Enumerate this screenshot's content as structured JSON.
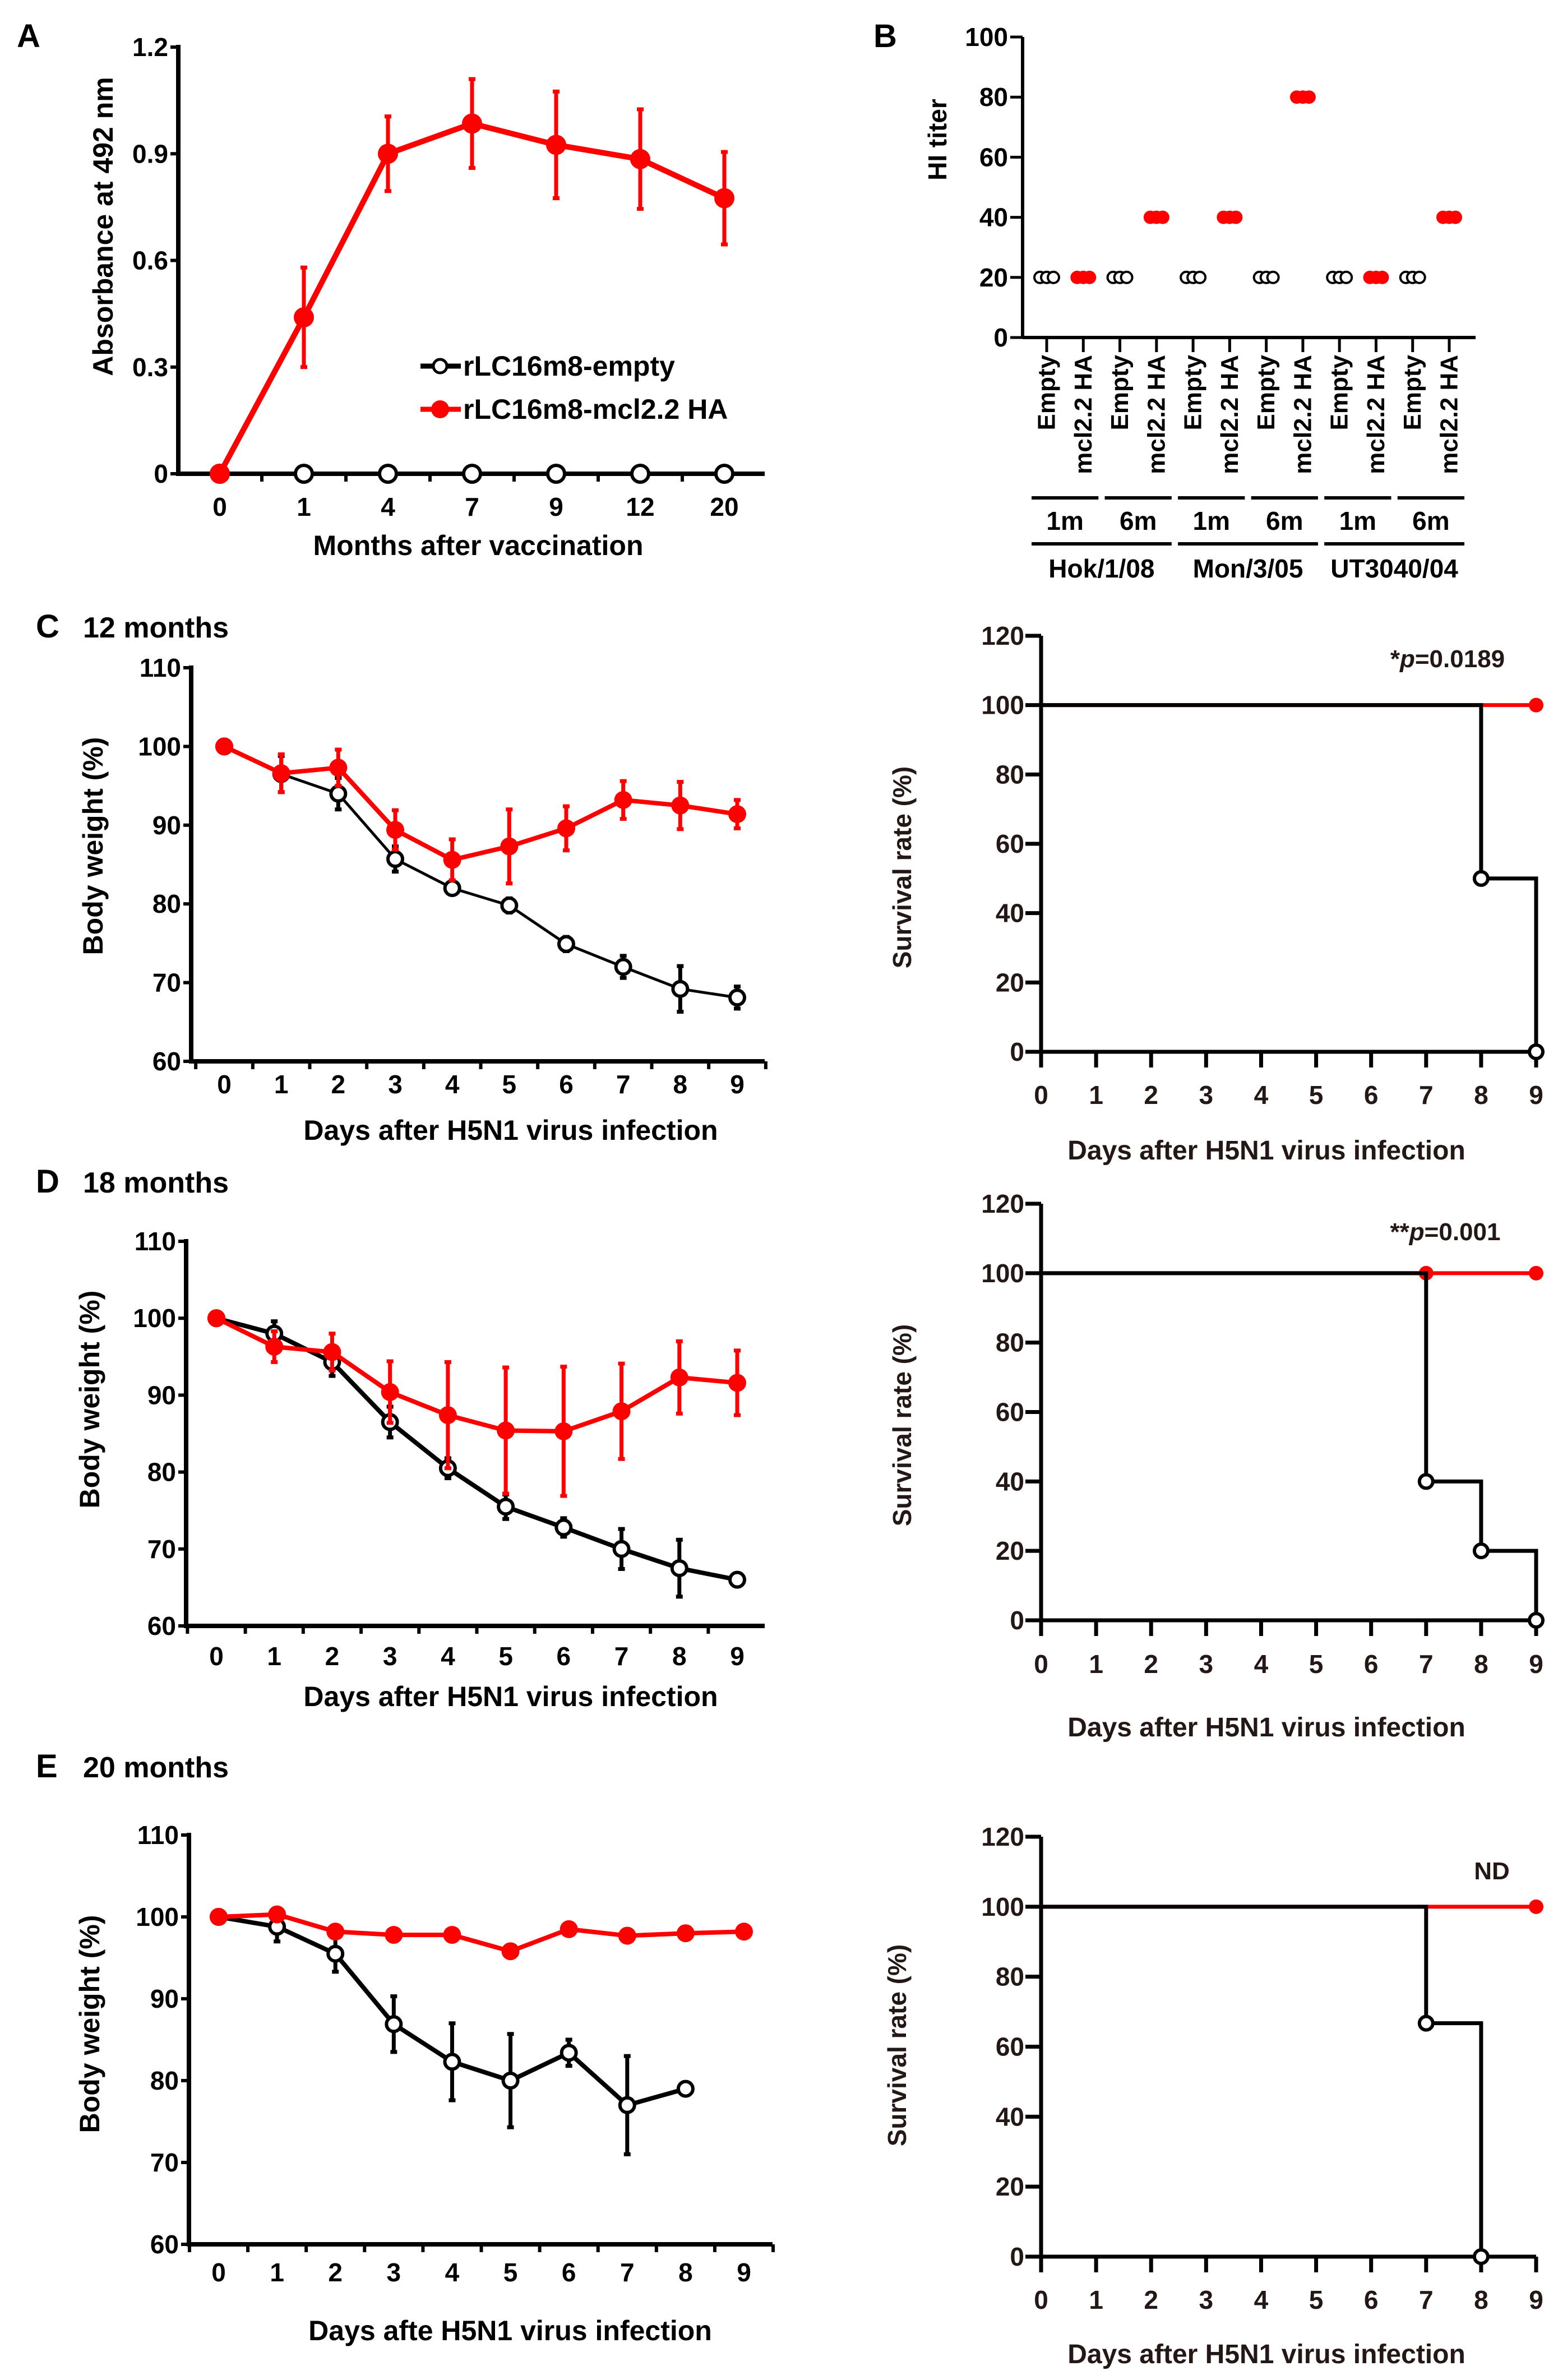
{
  "panels": {
    "A": {
      "label": "A"
    },
    "B": {
      "label": "B"
    },
    "C": {
      "label": "C",
      "title": "12 months"
    },
    "D": {
      "label": "D",
      "title": "18 months"
    },
    "E": {
      "label": "E",
      "title": "20 months"
    }
  },
  "colors": {
    "vaccine": "#ff0000",
    "empty": "#000000",
    "survival_text": "#231815"
  },
  "chart_data": [
    {
      "panel": "A",
      "type": "line",
      "xlabel": "Months after vaccination",
      "ylabel": "Absorbance at 492 nm",
      "categories": [
        "0",
        "1",
        "4",
        "7",
        "9",
        "12",
        "20"
      ],
      "ylim": [
        0,
        1.2
      ],
      "yticks": [
        "0",
        "0.3",
        "0.6",
        "0.9",
        "1.2"
      ],
      "legend": "center-right",
      "series": [
        {
          "name": "rLC16m8-empty",
          "color": "#000000",
          "marker": "open-circle",
          "values": [
            0,
            0,
            0,
            0,
            0,
            0,
            0
          ],
          "err": [
            0,
            0,
            0,
            0,
            0,
            0,
            0
          ]
        },
        {
          "name": "rLC16m8-mcl2.2 HA",
          "color": "#ff0000",
          "marker": "filled-circle",
          "values": [
            0,
            0.44,
            0.9,
            0.985,
            0.925,
            0.885,
            0.775
          ],
          "err": [
            0,
            0.14,
            0.105,
            0.125,
            0.15,
            0.14,
            0.13
          ]
        }
      ]
    },
    {
      "panel": "B",
      "type": "scatter",
      "ylabel": "HI titer",
      "ylim": [
        0,
        100
      ],
      "yticks": [
        "0",
        "20",
        "40",
        "60",
        "80",
        "100"
      ],
      "categories": [
        "Empty",
        "mcl2.2 HA",
        "Empty",
        "mcl2.2 HA",
        "Empty",
        "mcl2.2 HA",
        "Empty",
        "mcl2.2 HA",
        "Empty",
        "mcl2.2 HA",
        "Empty",
        "mcl2.2 HA"
      ],
      "timepoints": [
        "1m",
        "6m",
        "1m",
        "6m",
        "1m",
        "6m"
      ],
      "strains": [
        "Hok/1/08",
        "Mon/3/05",
        "UT3040/04"
      ],
      "values": [
        [
          20,
          20,
          20
        ],
        [
          20,
          20,
          20
        ],
        [
          20,
          20,
          20
        ],
        [
          40,
          40,
          40
        ],
        [
          20,
          20,
          20
        ],
        [
          40,
          40,
          40
        ],
        [
          20,
          20,
          20
        ],
        [
          80,
          80,
          80
        ],
        [
          20,
          20,
          20
        ],
        [
          20,
          20,
          20
        ],
        [
          20,
          20,
          20
        ],
        [
          40,
          40,
          40
        ]
      ]
    },
    {
      "panel": "C",
      "type": "line",
      "xlabel": "Days after H5N1 virus infection",
      "ylabel": "Body weight (%)",
      "categories": [
        "0",
        "1",
        "2",
        "3",
        "4",
        "5",
        "6",
        "7",
        "8",
        "9"
      ],
      "ylim": [
        60,
        110
      ],
      "yticks": [
        "60",
        "70",
        "80",
        "90",
        "100",
        "110"
      ],
      "series": [
        {
          "color": "#000000",
          "marker": "open-circle",
          "values": [
            100,
            96.5,
            94.0,
            85.7,
            82.0,
            79.8,
            74.9,
            72.0,
            69.2,
            68.1
          ],
          "err": [
            0,
            2.3,
            2.0,
            1.6,
            0,
            0.9,
            0.9,
            1.4,
            2.9,
            1.4
          ]
        },
        {
          "color": "#ff0000",
          "marker": "filled-circle",
          "values": [
            100,
            96.6,
            97.3,
            89.4,
            85.6,
            87.3,
            89.6,
            93.2,
            92.5,
            91.4
          ],
          "err": [
            0,
            2.4,
            2.3,
            2.5,
            2.6,
            4.7,
            2.8,
            2.4,
            3.0,
            1.8
          ]
        }
      ]
    },
    {
      "panel": "C",
      "type": "line",
      "xlabel": "Days after H5N1 virus infection",
      "ylabel": "Survival rate (%)",
      "categories": [
        "0",
        "1",
        "2",
        "3",
        "4",
        "5",
        "6",
        "7",
        "8",
        "9"
      ],
      "ylim": [
        0,
        120
      ],
      "yticks": [
        "0",
        "20",
        "40",
        "60",
        "80",
        "100",
        "120"
      ],
      "annotation": {
        "prefix": "*",
        "italic": "p",
        "suffix": "=0.0189"
      },
      "series": [
        {
          "color": "#ff0000",
          "marker": "filled-circle",
          "x": [
            0,
            9
          ],
          "y": [
            100,
            100
          ],
          "markers_at": [
            9
          ]
        },
        {
          "color": "#000000",
          "marker": "open-circle",
          "x": [
            0,
            8,
            9
          ],
          "y": [
            100,
            50,
            0
          ],
          "markers_at": [
            8,
            9
          ]
        }
      ]
    },
    {
      "panel": "D",
      "type": "line",
      "xlabel": "Days after H5N1 virus infection",
      "ylabel": "Body weight (%)",
      "categories": [
        "0",
        "1",
        "2",
        "3",
        "4",
        "5",
        "6",
        "7",
        "8",
        "9"
      ],
      "ylim": [
        60,
        110
      ],
      "yticks": [
        "60",
        "70",
        "80",
        "90",
        "100",
        "110"
      ],
      "series": [
        {
          "color": "#000000",
          "marker": "open-circle",
          "values": [
            100,
            98.0,
            94.3,
            86.5,
            80.5,
            75.5,
            72.8,
            70.0,
            67.5,
            66.0
          ],
          "err": [
            0,
            1.6,
            1.8,
            2.0,
            1.3,
            1.6,
            1.2,
            2.6,
            3.7,
            0
          ]
        },
        {
          "color": "#ff0000",
          "marker": "filled-circle",
          "values": [
            100,
            96.3,
            95.6,
            90.4,
            87.4,
            85.4,
            85.3,
            87.9,
            92.3,
            91.6
          ],
          "err": [
            0,
            2.0,
            2.4,
            4.0,
            6.9,
            8.2,
            8.4,
            6.2,
            4.7,
            4.2
          ]
        }
      ]
    },
    {
      "panel": "D",
      "type": "line",
      "xlabel": "Days after H5N1 virus infection",
      "ylabel": "Survival rate (%)",
      "categories": [
        "0",
        "1",
        "2",
        "3",
        "4",
        "5",
        "6",
        "7",
        "8",
        "9"
      ],
      "ylim": [
        0,
        120
      ],
      "yticks": [
        "0",
        "20",
        "40",
        "60",
        "80",
        "100",
        "120"
      ],
      "annotation": {
        "prefix": "**",
        "italic": "p",
        "suffix": "=0.001"
      },
      "series": [
        {
          "color": "#ff0000",
          "marker": "filled-circle",
          "x": [
            0,
            9
          ],
          "y": [
            100,
            100
          ],
          "markers_at": [
            7,
            9
          ]
        },
        {
          "color": "#000000",
          "marker": "open-circle",
          "x": [
            0,
            7,
            8,
            9
          ],
          "y": [
            100,
            40,
            20,
            0
          ],
          "markers_at": [
            7,
            8,
            9
          ]
        }
      ]
    },
    {
      "panel": "E",
      "type": "line",
      "xlabel": "Days afte H5N1 virus infection",
      "ylabel": "Body weight (%)",
      "categories": [
        "0",
        "1",
        "2",
        "3",
        "4",
        "5",
        "6",
        "7",
        "8",
        "9"
      ],
      "ylim": [
        60,
        110
      ],
      "yticks": [
        "60",
        "70",
        "80",
        "90",
        "100",
        "110"
      ],
      "series": [
        {
          "color": "#000000",
          "marker": "open-circle",
          "values": [
            100,
            98.8,
            95.5,
            86.9,
            82.3,
            80.0,
            83.4,
            77.0,
            79.0,
            null
          ],
          "err": [
            0,
            1.8,
            2.2,
            3.4,
            4.7,
            5.7,
            1.6,
            6.0,
            0,
            0
          ]
        },
        {
          "color": "#ff0000",
          "marker": "filled-circle",
          "values": [
            100,
            100.3,
            98.2,
            97.8,
            97.8,
            95.8,
            98.5,
            97.7,
            98.0,
            98.2
          ],
          "err": [
            0,
            0,
            0,
            0,
            0,
            0,
            0,
            0,
            0,
            0
          ]
        }
      ]
    },
    {
      "panel": "E",
      "type": "line",
      "xlabel": "Days after H5N1 virus infection",
      "ylabel": "Survival rate (%)",
      "categories": [
        "0",
        "1",
        "2",
        "3",
        "4",
        "5",
        "6",
        "7",
        "8",
        "9"
      ],
      "ylim": [
        0,
        120
      ],
      "yticks": [
        "0",
        "20",
        "40",
        "60",
        "80",
        "100",
        "120"
      ],
      "annotation": {
        "text": "ND"
      },
      "series": [
        {
          "color": "#ff0000",
          "marker": "filled-circle",
          "x": [
            0,
            9
          ],
          "y": [
            100,
            100
          ],
          "markers_at": [
            9
          ]
        },
        {
          "color": "#000000",
          "marker": "open-circle",
          "x": [
            0,
            7,
            8
          ],
          "y": [
            100,
            66.7,
            0
          ],
          "markers_at": [
            7,
            8
          ]
        }
      ]
    }
  ]
}
